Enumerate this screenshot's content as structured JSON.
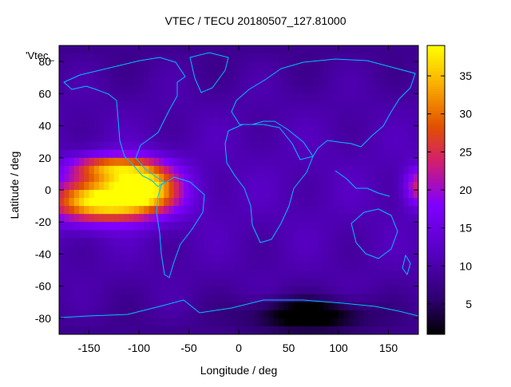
{
  "chart_data": {
    "type": "heatmap",
    "title": "VTEC / TECU 20180507_127.81000",
    "xlabel": "Longitude / deg",
    "ylabel": "Latitude / deg",
    "legend_key": "'Vtec_",
    "xlim": [
      -180,
      180
    ],
    "ylim": [
      -90,
      90
    ],
    "xticks": [
      -150,
      -100,
      -50,
      0,
      50,
      100,
      150
    ],
    "yticks": [
      -80,
      -60,
      -40,
      -20,
      0,
      20,
      40,
      60,
      80
    ],
    "colorbar": {
      "range": [
        1,
        39
      ],
      "ticks": [
        5,
        10,
        15,
        20,
        25,
        30,
        35
      ],
      "colormap": "black-purple-red-orange-yellow"
    },
    "grid_resolution_deg": 5,
    "background_vtec": 11,
    "features": [
      {
        "name": "equatorial anomaly crest",
        "lon": -135,
        "lat": -7,
        "peak_vtec": 39,
        "lon_width": 55,
        "lat_width": 13
      },
      {
        "name": "pacific anomaly east lobe",
        "lon": -95,
        "lat": 3,
        "peak_vtec": 33,
        "lon_width": 35,
        "lat_width": 14
      },
      {
        "name": "northern crest",
        "lon": -130,
        "lat": 14,
        "peak_vtec": 29,
        "lon_width": 40,
        "lat_width": 8
      },
      {
        "name": "east edge enhancement",
        "lon": 180,
        "lat": 2,
        "peak_vtec": 24,
        "lon_width": 14,
        "lat_width": 12
      },
      {
        "name": "antarctic depletion",
        "lon": 70,
        "lat": -78,
        "peak_vtec": 1,
        "lon_width": 60,
        "lat_width": 10
      }
    ],
    "colors": {
      "overlay_coastline": "#00bfff",
      "axis": "#000000",
      "background": "#ffffff"
    }
  }
}
